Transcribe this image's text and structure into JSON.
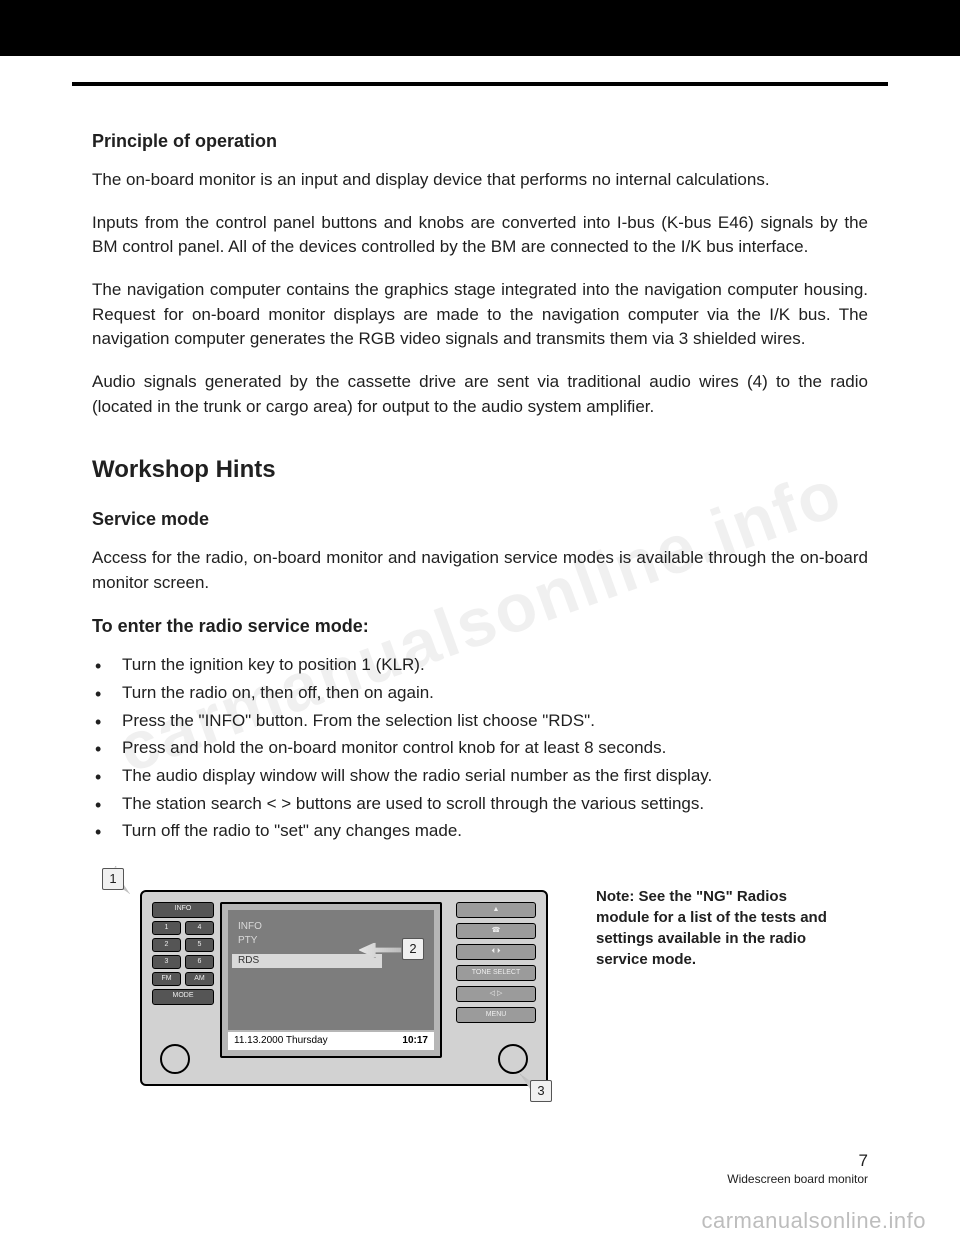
{
  "watermark": "carmanualsonline.info",
  "p1": {
    "heading": "Principle of operation",
    "para1": "The on-board monitor is an input and display device that performs no internal calculations.",
    "para2": "Inputs from the control panel buttons and knobs are converted into I-bus (K-bus E46) signals by the BM control panel.  All of the devices controlled by the BM are connected to the I/K bus interface.",
    "para3": "The navigation computer contains the graphics stage integrated into the navigation computer housing.  Request for on-board monitor displays are made to the navigation computer via the I/K bus.  The navigation computer generates the RGB video signals and transmits them via 3 shielded wires.",
    "para4": "Audio signals generated by the cassette drive are sent via traditional audio wires (4) to the radio (located in the trunk or cargo area) for output to the audio system amplifier."
  },
  "p2": {
    "heading": "Workshop Hints",
    "sub1": "Service mode",
    "sub1_text": "Access for the radio, on-board monitor and navigation service modes is available through the on-board monitor screen.",
    "sub2": "To enter the radio service mode:",
    "bullets": [
      "Turn the ignition key to position 1 (KLR).",
      "Turn the radio on, then off, then on again.",
      "Press the \"INFO\" button.  From the selection list choose \"RDS\".",
      "Press and hold the on-board monitor control knob for at least 8 seconds.",
      "The audio display window will show the radio serial number as the first display.",
      "The station search < > buttons are used to scroll through the various settings.",
      "Turn off the radio to \"set\" any changes made."
    ],
    "note": "Note: See the \"NG\" Radios module for a list of the tests and settings available in the radio service mode."
  },
  "device": {
    "left_buttons": {
      "info": "INFO",
      "presets": [
        [
          "1",
          "4"
        ],
        [
          "2",
          "5"
        ],
        [
          "3",
          "6"
        ]
      ],
      "bands": [
        "FM",
        "AM"
      ],
      "mode": "MODE"
    },
    "screen": {
      "list": [
        "INFO",
        "PTY",
        "RDS"
      ],
      "rds_label": "RDS",
      "status_left": "11.13.2000   Thursday",
      "status_right": "10:17"
    },
    "right_buttons": [
      "▲",
      "☎",
      "⏴  ⏵",
      "TONE SELECT",
      "◁   ▷",
      "MENU"
    ],
    "callouts": {
      "c1": "1",
      "c2": "2",
      "c3": "3"
    }
  },
  "footer": {
    "page": "7",
    "title": "Widescreen board monitor"
  },
  "brand": "carmanualsonline.info",
  "colors": {
    "text": "#202020",
    "device_body": "#d2d2d2",
    "screen_bg": "#7d7d7d",
    "watermark": "rgba(0,0,0,0.06)",
    "brand_gray": "#bdbdbd"
  }
}
